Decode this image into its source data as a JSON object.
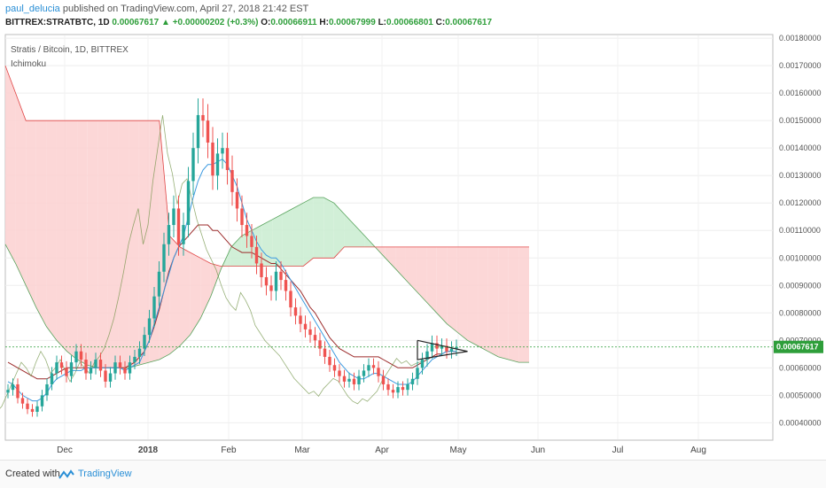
{
  "header": {
    "user": "paul_delucia",
    "published_text": "published on TradingView.com, April 27, 2018 21:42 EST",
    "symbol": "BITTREX:STRATBTC, 1D",
    "last": "0.00067617",
    "change": "+0.00000202 (+0.3%)",
    "o_label": "O:",
    "o_value": "0.00066911",
    "h_label": "H:",
    "h_value": "0.00067999",
    "l_label": "L:",
    "l_value": "0.00066801",
    "c_label": "C:",
    "c_value": "0.00067617"
  },
  "legend": {
    "pair": "Stratis / Bitcoin, 1D, BITTREX",
    "indicator": "Ichimoku"
  },
  "footer": {
    "created": "Created with",
    "brand": "TradingView"
  },
  "colors": {
    "up": "#26a69a",
    "down": "#ef5350",
    "cloud_bull": "#c9ecd0",
    "cloud_bear": "#fbd0d0",
    "tenkan": "#3c9ae0",
    "kijun": "#9c2b2b",
    "chikou": "#6b8f3e",
    "span_a": "#58a35c",
    "span_b": "#e04545",
    "price_label": "#2e9e3a"
  },
  "chart_data": {
    "type": "candlestick",
    "x_labels": [
      "Dec",
      "2018",
      "Feb",
      "Mar",
      "Apr",
      "May",
      "Jun",
      "Jul",
      "Aug"
    ],
    "y_ticks": [
      "0.00040000",
      "0.00050000",
      "0.00060000",
      "0.00070000",
      "0.00080000",
      "0.00090000",
      "0.00100000",
      "0.00110000",
      "0.00120000",
      "0.00130000",
      "0.00140000",
      "0.00150000",
      "0.00160000",
      "0.00170000",
      "0.00180000"
    ],
    "ylim": [
      0.00034,
      0.00181
    ],
    "last_price": 0.00067617,
    "last_price_label": "0.00067617",
    "close": [
      0.00052,
      0.00054,
      0.00049,
      0.00047,
      0.00045,
      0.00044,
      0.00046,
      0.0005,
      0.00054,
      0.00058,
      0.00062,
      0.0006,
      0.00057,
      0.00062,
      0.00066,
      0.00063,
      0.00058,
      0.0006,
      0.00063,
      0.00059,
      0.00055,
      0.00058,
      0.00062,
      0.0006,
      0.00058,
      0.00062,
      0.00064,
      0.00067,
      0.00072,
      0.00078,
      0.00086,
      0.00095,
      0.00105,
      0.00112,
      0.00118,
      0.00105,
      0.00112,
      0.00128,
      0.0014,
      0.00152,
      0.0015,
      0.00142,
      0.0013,
      0.00138,
      0.0014,
      0.00132,
      0.00124,
      0.00118,
      0.00112,
      0.00108,
      0.00104,
      0.00098,
      0.00093,
      0.0009,
      0.00088,
      0.00095,
      0.00092,
      0.00088,
      0.00082,
      0.00079,
      0.00076,
      0.00074,
      0.00072,
      0.0007,
      0.00067,
      0.00064,
      0.00061,
      0.00059,
      0.00057,
      0.00055,
      0.00056,
      0.00054,
      0.00057,
      0.00059,
      0.00061,
      0.0006,
      0.00057,
      0.00054,
      0.00052,
      0.00051,
      0.00053,
      0.00052,
      0.00054,
      0.00056,
      0.0006,
      0.00063,
      0.00066,
      0.00069,
      0.00067,
      0.00068,
      0.00066,
      0.00067,
      0.00067617
    ],
    "tenkan": [
      0.00055,
      0.00054,
      0.00052,
      0.0005,
      0.00049,
      0.00048,
      0.00048,
      0.00049,
      0.00051,
      0.00054,
      0.00056,
      0.00057,
      0.00058,
      0.00059,
      0.00059,
      0.00059,
      0.0006,
      0.0006,
      0.0006,
      0.0006,
      0.0006,
      0.0006,
      0.0006,
      0.0006,
      0.00059,
      0.0006,
      0.00061,
      0.00062,
      0.00066,
      0.0007,
      0.00076,
      0.00082,
      0.00088,
      0.00094,
      0.001,
      0.00104,
      0.00108,
      0.00115,
      0.00122,
      0.00128,
      0.00132,
      0.00134,
      0.00134,
      0.00135,
      0.00136,
      0.00134,
      0.0013,
      0.00126,
      0.0012,
      0.00114,
      0.0011,
      0.00106,
      0.00103,
      0.00101,
      0.001,
      0.001,
      0.00098,
      0.00095,
      0.00092,
      0.00089,
      0.00086,
      0.00083,
      0.0008,
      0.00077,
      0.00074,
      0.00071,
      0.00068,
      0.00065,
      0.00062,
      0.0006,
      0.00058,
      0.00057,
      0.00056,
      0.00056,
      0.00057,
      0.00058,
      0.00058,
      0.00057,
      0.00056,
      0.00055,
      0.00054,
      0.00054,
      0.00054,
      0.00055,
      0.00057,
      0.00059,
      0.00061,
      0.00063,
      0.00064,
      0.00065,
      0.00066,
      0.00066,
      0.00066
    ],
    "kijun": [
      0.00062,
      0.00061,
      0.0006,
      0.00059,
      0.00058,
      0.00057,
      0.00056,
      0.00056,
      0.00056,
      0.00057,
      0.00058,
      0.00059,
      0.0006,
      0.0006,
      0.0006,
      0.0006,
      0.0006,
      0.0006,
      0.0006,
      0.0006,
      0.0006,
      0.0006,
      0.0006,
      0.0006,
      0.0006,
      0.00061,
      0.00062,
      0.00064,
      0.00066,
      0.0007,
      0.00075,
      0.00081,
      0.00088,
      0.00095,
      0.001,
      0.00104,
      0.00106,
      0.00108,
      0.0011,
      0.00112,
      0.00112,
      0.00112,
      0.0011,
      0.0011,
      0.00108,
      0.00106,
      0.00104,
      0.00103,
      0.00102,
      0.00102,
      0.00102,
      0.00101,
      0.001,
      0.00099,
      0.00098,
      0.00098,
      0.00096,
      0.00094,
      0.00092,
      0.0009,
      0.00088,
      0.00085,
      0.00082,
      0.0008,
      0.00077,
      0.00074,
      0.00071,
      0.00069,
      0.00067,
      0.00066,
      0.00065,
      0.00064,
      0.00064,
      0.00064,
      0.00064,
      0.00064,
      0.00064,
      0.00063,
      0.00062,
      0.00061,
      0.0006,
      0.0006,
      0.0006,
      0.0006,
      0.00061,
      0.00062,
      0.00063,
      0.00064,
      0.00065,
      0.00065,
      0.00066,
      0.00066,
      0.00066
    ],
    "span_a": [
      0.00105,
      0.00098,
      0.0009,
      0.00082,
      0.00075,
      0.0007,
      0.00066,
      0.00063,
      0.00061,
      0.0006,
      0.0006,
      0.0006,
      0.0006,
      0.00061,
      0.00062,
      0.00063,
      0.00065,
      0.00068,
      0.00072,
      0.00078,
      0.00086,
      0.00096,
      0.00104,
      0.00108,
      0.0011,
      0.00112,
      0.00114,
      0.00116,
      0.00118,
      0.0012,
      0.00122,
      0.00122,
      0.0012,
      0.00116,
      0.00112,
      0.00108,
      0.00104,
      0.001,
      0.00096,
      0.00092,
      0.00088,
      0.00084,
      0.0008,
      0.00076,
      0.00073,
      0.0007,
      0.00068,
      0.00066,
      0.00064,
      0.00063,
      0.00062,
      0.00062
    ],
    "span_b": [
      0.0017,
      0.0016,
      0.0015,
      0.0015,
      0.0015,
      0.0015,
      0.0015,
      0.0015,
      0.0015,
      0.0015,
      0.0015,
      0.0015,
      0.0015,
      0.0015,
      0.0015,
      0.0015,
      0.00108,
      0.00104,
      0.00102,
      0.001,
      0.00098,
      0.00097,
      0.00097,
      0.00097,
      0.00097,
      0.00097,
      0.00097,
      0.00097,
      0.00097,
      0.00097,
      0.001,
      0.001,
      0.001,
      0.00104,
      0.00104,
      0.00104,
      0.00104,
      0.00104,
      0.00104,
      0.00104,
      0.00104,
      0.00104,
      0.00104,
      0.00104,
      0.00104,
      0.00104,
      0.00104,
      0.00104,
      0.00104,
      0.00104,
      0.00104,
      0.00104
    ]
  }
}
